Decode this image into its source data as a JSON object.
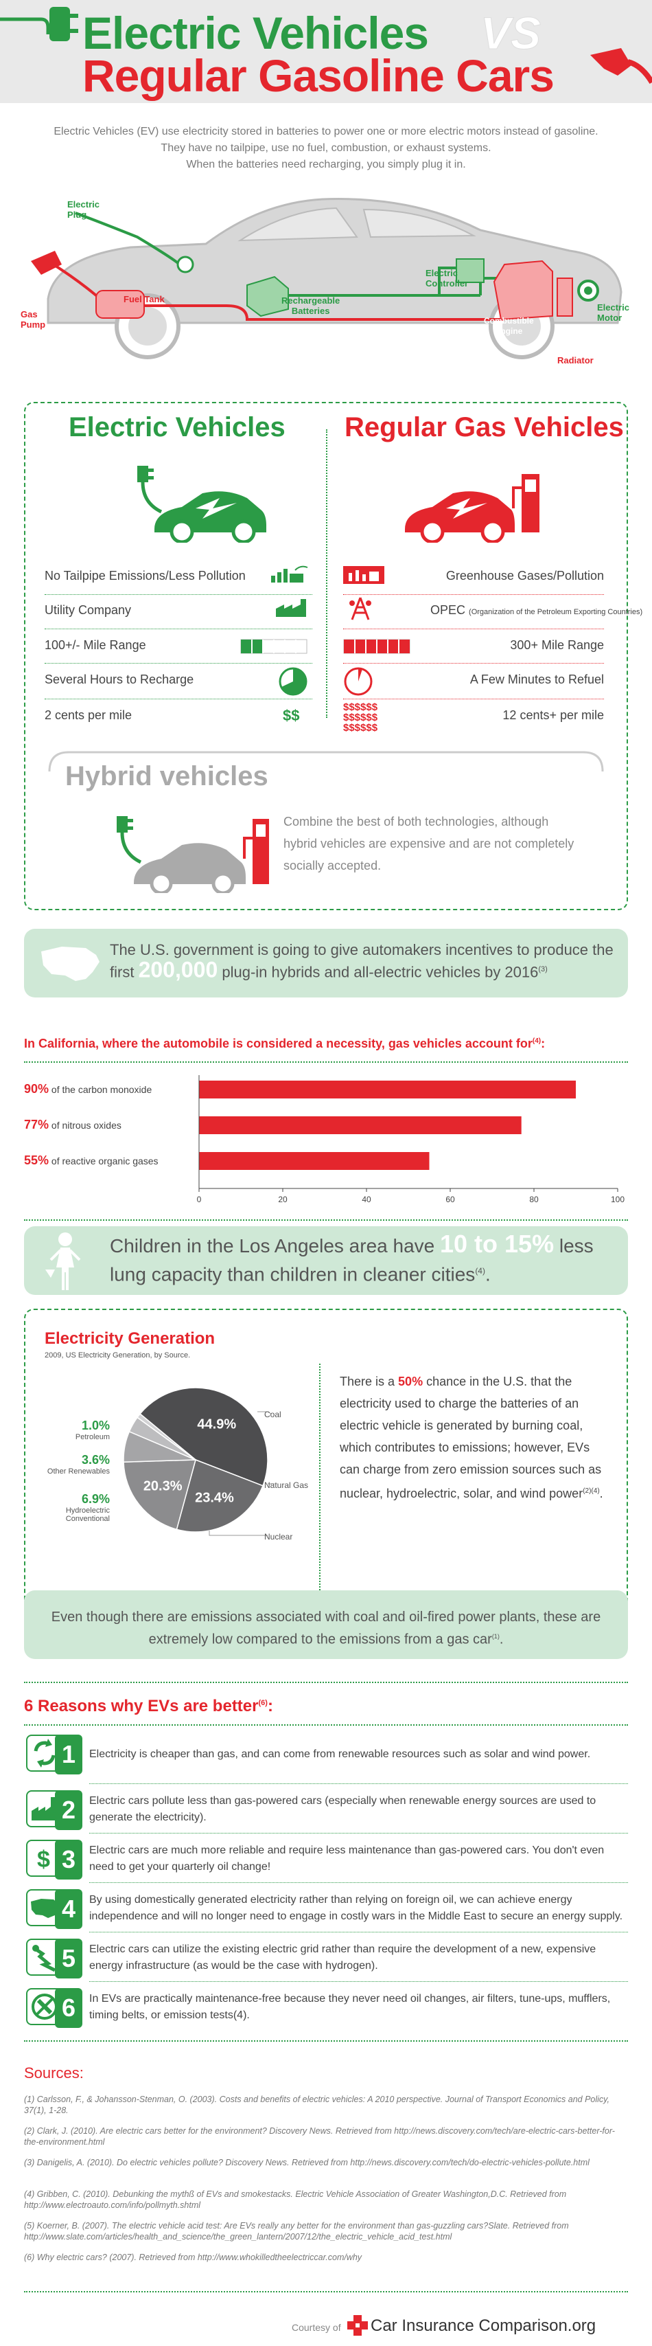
{
  "header": {
    "title_line1": "Electric Vehicles",
    "vs": "VS",
    "title_line2": "Regular Gasoline Cars"
  },
  "intro": [
    "Electric Vehicles (EV) use electricity stored in batteries to power one or more electric motors instead of gasoline.",
    "They have no tailpipe, use no fuel, combustion, or exhaust systems.",
    "When the batteries need recharging, you simply plug it in."
  ],
  "diagram": {
    "electric_plug": "Electric\nPlug",
    "gas_pump": "Gas\nPump",
    "fuel_tank": "Fuel Tank",
    "batteries": "Rechargeable\nBatteries",
    "controller": "Electric\nController",
    "engine": "Combustible\nEngine",
    "motor": "Electric\nMotor",
    "radiator": "Radiator"
  },
  "compare": {
    "ev_title": "Electric Vehicles",
    "gas_title": "Regular Gas Vehicles",
    "ev_rows": [
      "No Tailpipe Emissions/Less Pollution",
      "Utility Company",
      "100+/- Mile Range",
      "Several Hours to Recharge",
      "2 cents per mile"
    ],
    "gas_rows": [
      "Greenhouse Gases/Pollution",
      "OPEC",
      "300+ Mile Range",
      "A Few Minutes to Refuel",
      "12 cents+ per mile"
    ],
    "opec_note": "(Organization of the Petroleum Exporting Countries)",
    "ev_cost_icon": "$$",
    "gas_cost_icon": [
      "$$$$$$",
      "$$$$$$",
      "$$$$$$"
    ],
    "ev_range_fraction": 0.33,
    "gas_range_fraction": 1.0,
    "hybrid_title": "Hybrid vehicles",
    "hybrid_text": "Combine the best of both technologies, although hybrid vehicles are expensive and are not completely socially accepted."
  },
  "gov": {
    "pre": "The U.S. government is going to give automakers incentives to produce the first ",
    "number": "200,000",
    "post": " plug-in hybrids and all-electric vehicles by 2016",
    "ref": "(3)"
  },
  "california": {
    "heading": "In California, where the automobile is considered a necessity, gas vehicles account for",
    "ref": "(4)",
    "suffix": ":"
  },
  "chart_data": {
    "type": "bar",
    "orientation": "horizontal",
    "categories": [
      "of the carbon monoxide",
      "of nitrous oxides",
      "of reactive organic gases"
    ],
    "percent_labels": [
      "90%",
      "77%",
      "55%"
    ],
    "values": [
      90,
      77,
      55
    ],
    "xlim": [
      0,
      100
    ],
    "xticks": [
      "0",
      "20",
      "40",
      "60",
      "80",
      "100"
    ],
    "color": "#e4262d"
  },
  "lung": {
    "pre": "Children in the Los Angeles area have ",
    "number": "10 to 15%",
    "post": " less lung capacity than children in cleaner cities",
    "ref": "(4)",
    "end": "."
  },
  "electricity": {
    "title": "Electricity Generation",
    "subtitle": "2009, US Electricity Generation, by Source.",
    "pie": [
      {
        "name": "Coal",
        "value": 44.9,
        "label": "44.9%",
        "color": "#4d4d4f"
      },
      {
        "name": "Natural Gas",
        "value": 23.4,
        "label": "23.4%",
        "color": "#6b6b6d"
      },
      {
        "name": "Nuclear",
        "value": 20.3,
        "label": "20.3%",
        "color": "#8c8c8e"
      },
      {
        "name": "Hydroelectric Conventional",
        "value": 6.9,
        "label": "6.9%",
        "color": "#a5a5a7"
      },
      {
        "name": "Other Renewables",
        "value": 3.6,
        "label": "3.6%",
        "color": "#bdbdbf"
      },
      {
        "name": "Petroleum",
        "value": 1.0,
        "label": "1.0%",
        "color": "#d2d2d4"
      }
    ],
    "text_pre": "There is a ",
    "text_pct": "50%",
    "text_post": " chance in the U.S. that the electricity used to charge the batteries of an electric vehicle is generated by burning coal, which contributes to emissions; however, EVs can charge from zero emission sources such as nuclear, hydroelectric, solar, and wind power",
    "text_ref": "(2)(4)",
    "text_end": "."
  },
  "emissions": {
    "text": "Even though there are emissions associated with coal and oil-fired power plants, these are extremely low compared to the emissions from a gas car",
    "ref": "(1)",
    "end": "."
  },
  "reasons": {
    "heading": "6 Reasons why EVs are better",
    "ref": "(6)",
    "suffix": ":",
    "items": [
      {
        "num": "1",
        "text": "Electricity is cheaper than gas, and can come from renewable resources such as solar and wind power."
      },
      {
        "num": "2",
        "text": "Electric cars pollute less than gas-powered cars (especially when renewable energy sources are used to generate the electricity)."
      },
      {
        "num": "3",
        "text": "Electric cars are much more reliable and require less maintenance than gas-powered cars. You don't even need to get your quarterly oil change!"
      },
      {
        "num": "4",
        "text": "By using domestically generated electricity rather than relying on foreign oil, we can achieve energy independence and will no longer need to engage in costly wars in the Middle East to secure an energy supply."
      },
      {
        "num": "5",
        "text": "Electric cars can utilize the existing electric grid rather than require the development of a new, expensive energy infrastructure (as would be the case with hydrogen)."
      },
      {
        "num": "6",
        "text": "In EVs are practically maintenance-free because they never need oil changes, air filters, tune-ups, mufflers, timing belts, or emission tests(4)."
      }
    ]
  },
  "sources": {
    "heading": "Sources:",
    "items": [
      "(1)  Carlsson, F., & Johansson-Stenman, O. (2003). Costs and benefits of electric vehicles: A 2010 perspective. Journal of Transport Economics and Policy, 37(1), 1-28.",
      "(2)  Clark, J. (2010). Are electric cars better for the environment? Discovery News. Retrieved from http://news.discovery.com/tech/are-electric-cars-better-for-the-environment.html",
      "(3)  Danigelis, A. (2010). Do electric vehicles pollute? Discovery News. Retrieved from http://news.discovery.com/tech/do-electric-vehicles-pollute.html",
      "(4)  Gribben, C. (2010). Debunking the mythß of EVs and smokestacks. Electric Vehicle Association of Greater Washington,D.C. Retrieved from http://www.electroauto.com/info/pollmyth.shtml",
      "(5)  Koerner, B. (2007). The electric vehicle acid test: Are EVs really any better for the environment than gas-guzzling cars?Slate. Retrieved from http://www.slate.com/articles/health_and_science/the_green_lantern/2007/12/the_electric_vehicle_acid_test.html",
      "(6)  Why electric cars? (2007). Retrieved from http://www.whokilledtheelectriccar.com/why"
    ]
  },
  "footer": {
    "courtesy": "Courtesy of",
    "brand": "Car Insurance Comparison.org"
  },
  "colors": {
    "green": "#2b9b46",
    "red": "#e4262d",
    "banner": "#cfe8d6"
  }
}
